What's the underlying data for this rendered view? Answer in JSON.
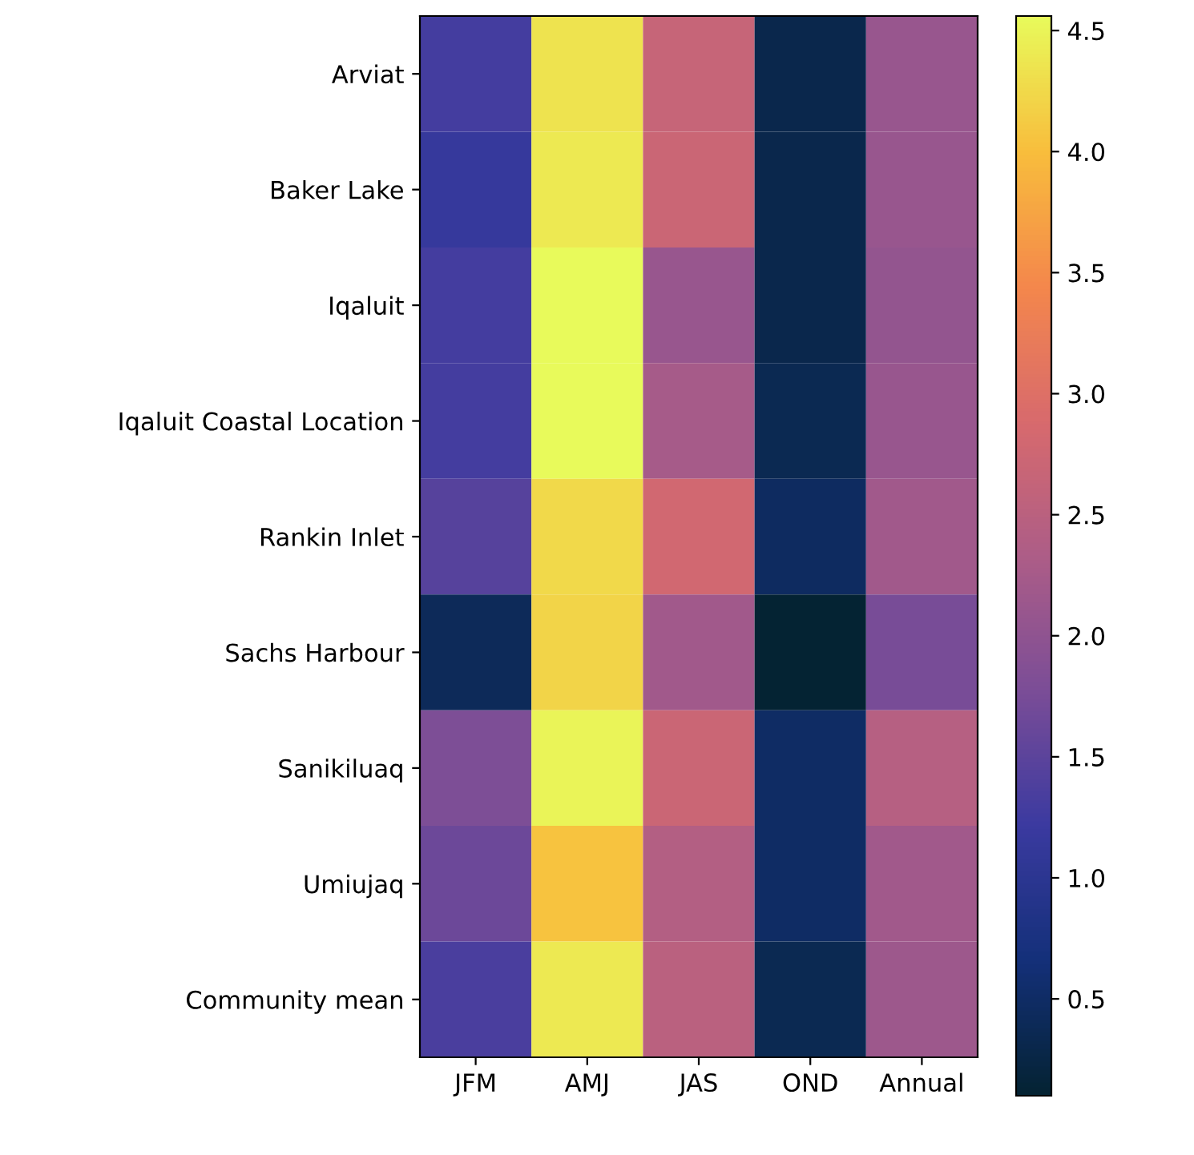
{
  "chart_data": {
    "type": "heatmap",
    "categories": [
      "JFM",
      "AMJ",
      "JAS",
      "OND",
      "Annual"
    ],
    "y_categories": [
      "Arviat",
      "Baker Lake",
      "Iqaluit",
      "Iqaluit Coastal Location",
      "Rankin Inlet",
      "Sachs Harbour",
      "Sanikiluaq",
      "Umiujaq",
      "Community mean"
    ],
    "cells": [
      [
        1.3,
        4.35,
        2.65,
        0.3,
        2.1
      ],
      [
        1.15,
        4.4,
        2.7,
        0.3,
        2.1
      ],
      [
        1.3,
        4.55,
        2.1,
        0.3,
        2.05
      ],
      [
        1.3,
        4.55,
        2.25,
        0.35,
        2.1
      ],
      [
        1.45,
        4.25,
        2.8,
        0.45,
        2.2
      ],
      [
        0.4,
        4.2,
        2.2,
        0.1,
        1.75
      ],
      [
        1.8,
        4.5,
        2.7,
        0.5,
        2.45
      ],
      [
        1.65,
        4.05,
        2.4,
        0.5,
        2.2
      ],
      [
        1.35,
        4.4,
        2.5,
        0.35,
        2.15
      ]
    ],
    "clim": [
      0.1,
      4.56
    ],
    "cticks": [
      0.5,
      {
        "value": 1,
        "label": "1.0"
      },
      1.5,
      {
        "value": 2,
        "label": "2.0"
      },
      2.5,
      {
        "value": 3,
        "label": "3.0"
      },
      3.5,
      {
        "value": 4,
        "label": "4.0"
      },
      4.5
    ]
  }
}
